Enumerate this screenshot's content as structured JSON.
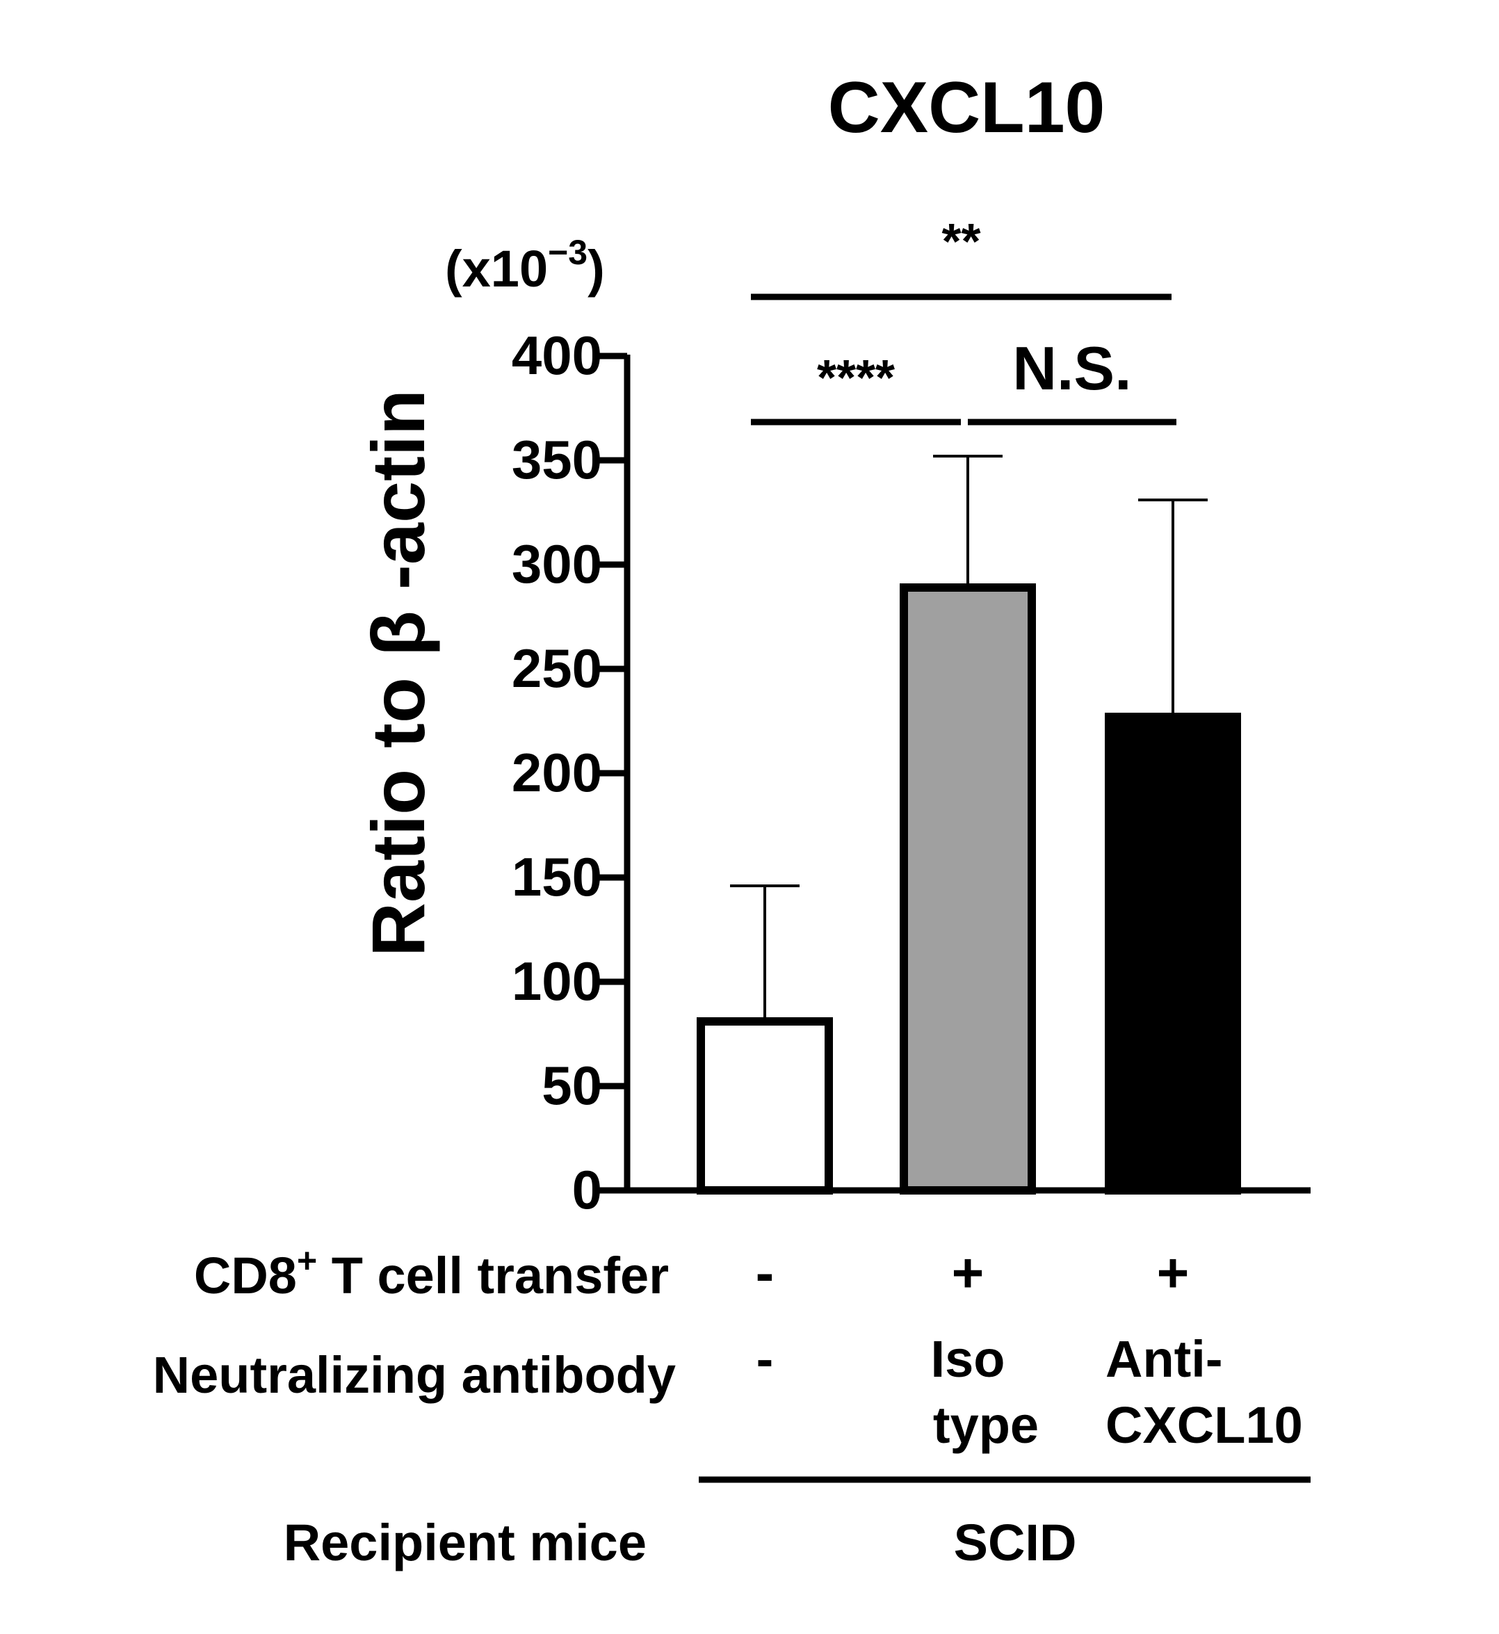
{
  "chart_data": {
    "type": "bar",
    "title": "CXCL10",
    "ylabel": "Ratio to β -actin",
    "yunit": "(x10",
    "yunit_exp": "−3",
    "yunit_close": ")",
    "ylim": [
      0,
      400
    ],
    "yticks": [
      "0",
      "50",
      "100",
      "150",
      "200",
      "250",
      "300",
      "350",
      "400"
    ],
    "categories": [
      "-|-",
      "+|Iso type",
      "+|Anti-CXCL10"
    ],
    "bars": [
      {
        "value": 81,
        "error": 65,
        "color": "#ffffff"
      },
      {
        "value": 289,
        "error": 63,
        "color": "#a0a0a0"
      },
      {
        "value": 227,
        "error": 104,
        "color": "#000000"
      }
    ],
    "significance": [
      {
        "label": "**",
        "from": 0,
        "to": 2
      },
      {
        "label": "****",
        "from": 0,
        "to": 1
      },
      {
        "label": "N.S.",
        "from": 1,
        "to": 2
      }
    ],
    "row_labels": {
      "cd8_prefix": "CD8",
      "cd8_sup": "+",
      "cd8_suffix": " T cell transfer",
      "antibody": "Neutralizing antibody",
      "recipient": "Recipient mice"
    },
    "cd8_values": [
      "-",
      "+",
      "+"
    ],
    "antibody_values": [
      [
        "-"
      ],
      [
        "Iso",
        "type"
      ],
      [
        "Anti-",
        "CXCL10"
      ]
    ],
    "recipient_value": "SCID",
    "grid": false
  }
}
